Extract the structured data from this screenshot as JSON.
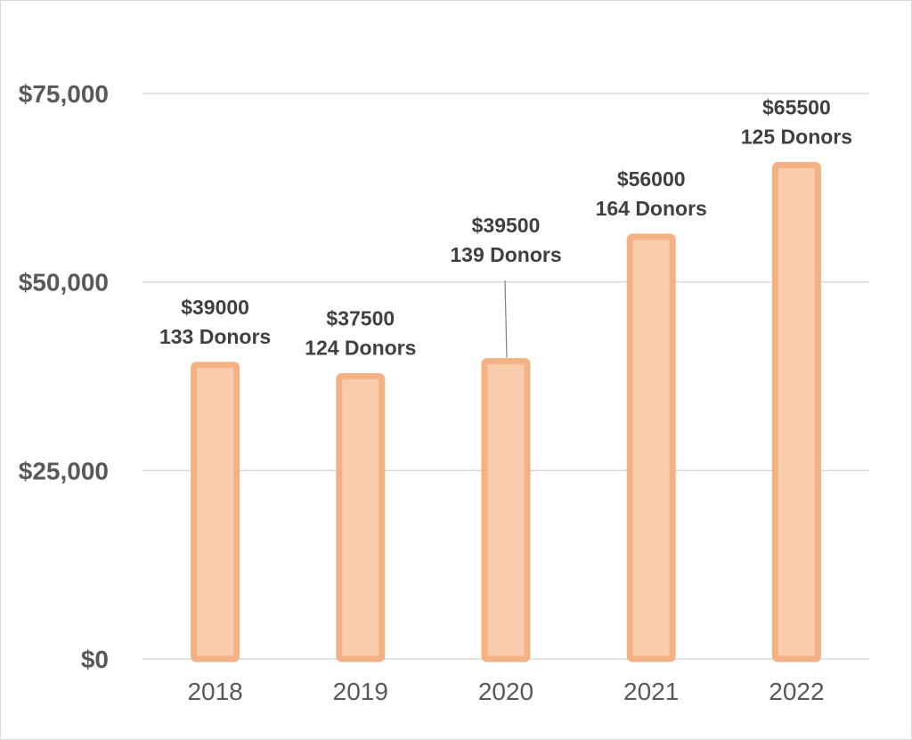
{
  "chart_data": {
    "type": "bar",
    "categories": [
      "2018",
      "2019",
      "2020",
      "2021",
      "2022"
    ],
    "values": [
      39000,
      37500,
      39500,
      56000,
      65500
    ],
    "data_labels": [
      {
        "amount": "$39000",
        "donors": "133 Donors"
      },
      {
        "amount": "$37500",
        "donors": "124 Donors"
      },
      {
        "amount": "$39500",
        "donors": "139 Donors"
      },
      {
        "amount": "$56000",
        "donors": "164 Donors"
      },
      {
        "amount": "$65500",
        "donors": "125 Donors"
      }
    ],
    "y_ticks": [
      {
        "value": 0,
        "label": "$0"
      },
      {
        "value": 25000,
        "label": "$25,000"
      },
      {
        "value": 50000,
        "label": "$50,000"
      },
      {
        "value": 75000,
        "label": "$75,000"
      }
    ],
    "ylim": [
      0,
      75000
    ],
    "title": "",
    "xlabel": "",
    "ylabel": "",
    "grid": true,
    "legend": "none",
    "colors": {
      "bar_fill": "#f8cbad",
      "bar_stroke": "#f4b183",
      "axis_text": "#595959",
      "label_text": "#404040",
      "grid": "#d9d9d9"
    }
  }
}
